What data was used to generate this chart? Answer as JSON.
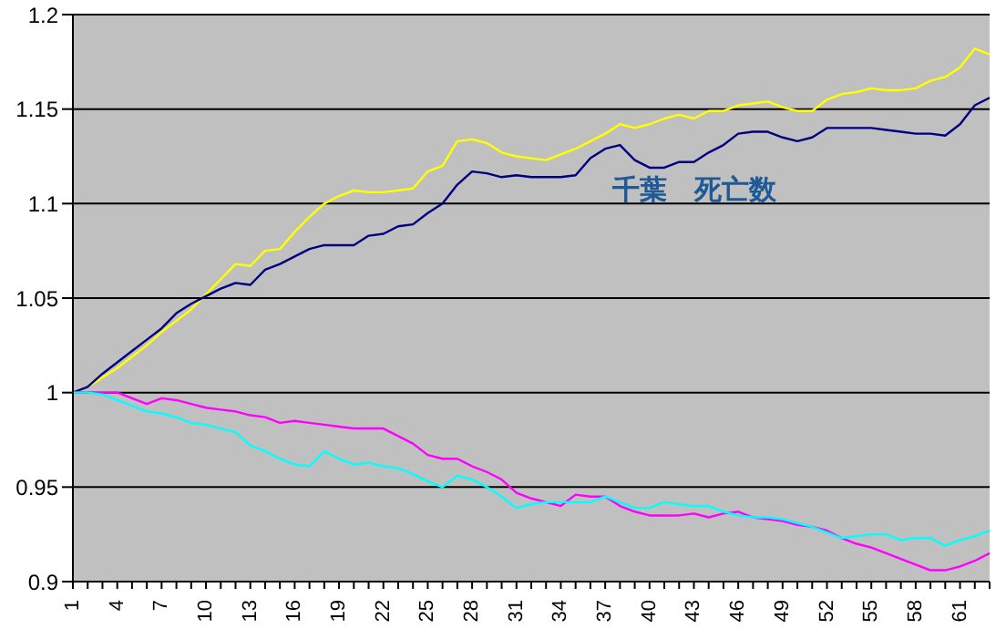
{
  "chart_data": {
    "type": "line",
    "categories": [
      "1",
      null,
      null,
      "4",
      null,
      null,
      "7",
      null,
      null,
      "10",
      null,
      null,
      "13",
      null,
      null,
      "16",
      null,
      null,
      "19",
      null,
      null,
      "22",
      null,
      null,
      "25",
      null,
      null,
      "28",
      null,
      null,
      "31",
      null,
      null,
      "34",
      null,
      null,
      "37",
      null,
      null,
      "40",
      null,
      null,
      "43",
      null,
      null,
      "46",
      null,
      null,
      "49",
      null,
      null,
      "52",
      null,
      null,
      "55",
      null,
      null,
      "58",
      null,
      null,
      "61",
      null,
      null
    ],
    "series": [
      {
        "color": "#ffff00",
        "values": [
          1.0,
          1.003,
          1.008,
          1.013,
          1.019,
          1.025,
          1.032,
          1.038,
          1.044,
          1.052,
          1.06,
          1.068,
          1.067,
          1.075,
          1.076,
          1.085,
          1.093,
          1.1,
          1.104,
          1.107,
          1.106,
          1.106,
          1.107,
          1.108,
          1.117,
          1.12,
          1.133,
          1.134,
          1.132,
          1.127,
          1.125,
          1.124,
          1.123,
          1.126,
          1.129,
          1.133,
          1.137,
          1.142,
          1.14,
          1.142,
          1.145,
          1.147,
          1.145,
          1.149,
          1.149,
          1.152,
          1.153,
          1.154,
          1.151,
          1.149,
          1.149,
          1.155,
          1.158,
          1.159,
          1.161,
          1.16,
          1.16,
          1.161,
          1.165,
          1.167,
          1.172,
          1.182,
          1.179
        ]
      },
      {
        "color": "#000080",
        "values": [
          1.0,
          1.003,
          1.01,
          1.016,
          1.022,
          1.028,
          1.034,
          1.042,
          1.047,
          1.051,
          1.055,
          1.058,
          1.057,
          1.065,
          1.068,
          1.072,
          1.076,
          1.078,
          1.078,
          1.078,
          1.083,
          1.084,
          1.088,
          1.089,
          1.095,
          1.1,
          1.11,
          1.117,
          1.116,
          1.114,
          1.115,
          1.114,
          1.114,
          1.114,
          1.115,
          1.124,
          1.129,
          1.131,
          1.123,
          1.119,
          1.119,
          1.122,
          1.122,
          1.127,
          1.131,
          1.137,
          1.138,
          1.138,
          1.135,
          1.133,
          1.135,
          1.14,
          1.14,
          1.14,
          1.14,
          1.139,
          1.138,
          1.137,
          1.137,
          1.136,
          1.142,
          1.152,
          1.156
        ]
      },
      {
        "color": "#ff00ff",
        "values": [
          1.0,
          1.0,
          1.0,
          1.0,
          0.997,
          0.994,
          0.997,
          0.996,
          0.994,
          0.992,
          0.991,
          0.99,
          0.988,
          0.987,
          0.984,
          0.985,
          0.984,
          0.983,
          0.982,
          0.981,
          0.981,
          0.981,
          0.977,
          0.973,
          0.967,
          0.965,
          0.965,
          0.961,
          0.958,
          0.954,
          0.947,
          0.944,
          0.942,
          0.94,
          0.946,
          0.945,
          0.945,
          0.94,
          0.937,
          0.935,
          0.935,
          0.935,
          0.936,
          0.934,
          0.936,
          0.937,
          0.934,
          0.933,
          0.932,
          0.93,
          0.929,
          0.927,
          0.923,
          0.92,
          0.918,
          0.915,
          0.912,
          0.909,
          0.906,
          0.906,
          0.908,
          0.911,
          0.915
        ]
      },
      {
        "color": "#00ffff",
        "values": [
          1.0,
          1.0,
          0.999,
          0.996,
          0.993,
          0.99,
          0.989,
          0.987,
          0.984,
          0.983,
          0.981,
          0.979,
          0.972,
          0.969,
          0.965,
          0.962,
          0.961,
          0.969,
          0.965,
          0.962,
          0.963,
          0.961,
          0.96,
          0.957,
          0.953,
          0.95,
          0.956,
          0.954,
          0.95,
          0.945,
          0.939,
          0.941,
          0.942,
          0.942,
          0.942,
          0.942,
          0.945,
          0.942,
          0.939,
          0.939,
          0.942,
          0.941,
          0.94,
          0.94,
          0.937,
          0.935,
          0.934,
          0.934,
          0.933,
          0.931,
          0.929,
          0.926,
          0.923,
          0.924,
          0.925,
          0.925,
          0.922,
          0.923,
          0.923,
          0.919,
          0.922,
          0.924,
          0.927
        ]
      }
    ],
    "ylim": [
      0.9,
      1.2
    ],
    "yticks": [
      0.9,
      0.95,
      1,
      1.05,
      1.1,
      1.15,
      1.2
    ],
    "grid": "y",
    "legend": false,
    "marker": "none",
    "line_style": "solid",
    "annotations": [
      "千葉　死亡数"
    ]
  }
}
